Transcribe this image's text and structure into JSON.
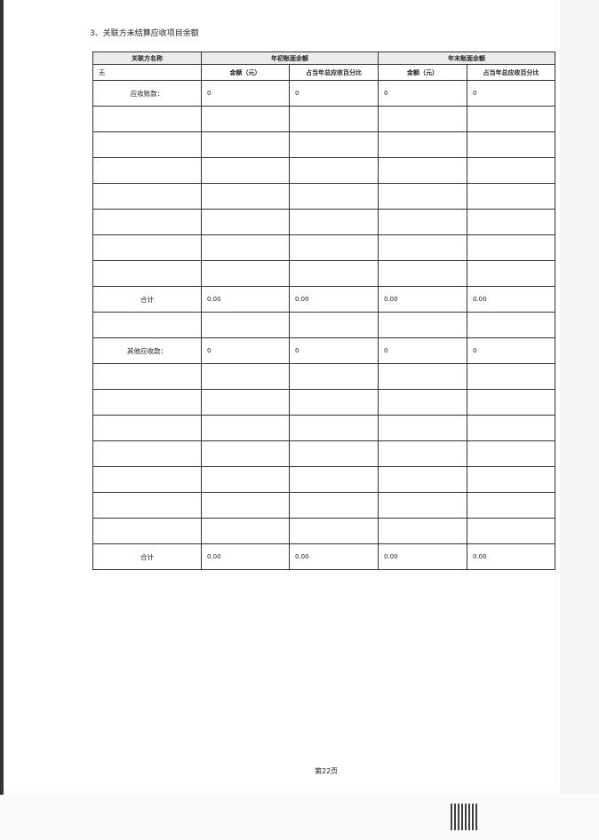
{
  "section_title": "3、关联方未结算应收项目余额",
  "table": {
    "header1": [
      "关联方名称",
      "年初账面余额",
      "年末账面余额"
    ],
    "header2": [
      "无",
      "金额（元）",
      "占当年总应收百分比",
      "金额（元）",
      "占当年总应收百分比"
    ],
    "rows": [
      [
        "应收账款：",
        "0",
        "0",
        "0",
        "0"
      ],
      [
        "",
        "",
        "",
        "",
        ""
      ],
      [
        "",
        "",
        "",
        "",
        ""
      ],
      [
        "",
        "",
        "",
        "",
        ""
      ],
      [
        "",
        "",
        "",
        "",
        ""
      ],
      [
        "",
        "",
        "",
        "",
        ""
      ],
      [
        "",
        "",
        "",
        "",
        ""
      ],
      [
        "",
        "",
        "",
        "",
        ""
      ],
      [
        "合计",
        "0.00",
        "0.00",
        "0.00",
        "0.00"
      ],
      [
        "",
        "",
        "",
        "",
        ""
      ],
      [
        "其他应收款：",
        "0",
        "0",
        "0",
        "0"
      ],
      [
        "",
        "",
        "",
        "",
        ""
      ],
      [
        "",
        "",
        "",
        "",
        ""
      ],
      [
        "",
        "",
        "",
        "",
        ""
      ],
      [
        "",
        "",
        "",
        "",
        ""
      ],
      [
        "",
        "",
        "",
        "",
        ""
      ],
      [
        "",
        "",
        "",
        "",
        ""
      ],
      [
        "",
        "",
        "",
        "",
        ""
      ],
      [
        "合计",
        "0.00",
        "0.00",
        "0.00",
        "0.00"
      ]
    ]
  },
  "footer": {
    "page": "第22页"
  }
}
